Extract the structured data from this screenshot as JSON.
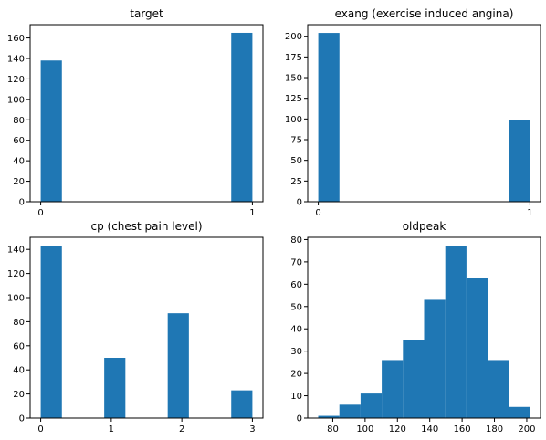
{
  "colors": {
    "bar": "#1f77b4"
  },
  "chart_data": [
    {
      "type": "bar",
      "title": "target",
      "bins": [
        [
          0,
          0.1
        ],
        [
          0.1,
          0.2
        ],
        [
          0.2,
          0.3
        ],
        [
          0.3,
          0.4
        ],
        [
          0.4,
          0.5
        ],
        [
          0.5,
          0.6
        ],
        [
          0.6,
          0.7
        ],
        [
          0.7,
          0.8
        ],
        [
          0.8,
          0.9
        ],
        [
          0.9,
          1.0
        ]
      ],
      "values": [
        138,
        0,
        0,
        0,
        0,
        0,
        0,
        0,
        0,
        165
      ],
      "xlim": [
        -0.05,
        1.05
      ],
      "ylim": [
        0,
        173
      ],
      "xticks": [
        0,
        1
      ],
      "yticks": [
        0,
        20,
        40,
        60,
        80,
        100,
        120,
        140,
        160
      ]
    },
    {
      "type": "bar",
      "title": "exang (exercise induced angina)",
      "bins": [
        [
          0,
          0.1
        ],
        [
          0.1,
          0.2
        ],
        [
          0.2,
          0.3
        ],
        [
          0.3,
          0.4
        ],
        [
          0.4,
          0.5
        ],
        [
          0.5,
          0.6
        ],
        [
          0.6,
          0.7
        ],
        [
          0.7,
          0.8
        ],
        [
          0.8,
          0.9
        ],
        [
          0.9,
          1.0
        ]
      ],
      "values": [
        204,
        0,
        0,
        0,
        0,
        0,
        0,
        0,
        0,
        99
      ],
      "xlim": [
        -0.05,
        1.05
      ],
      "ylim": [
        0,
        214
      ],
      "xticks": [
        0,
        1
      ],
      "yticks": [
        0,
        25,
        50,
        75,
        100,
        125,
        150,
        175,
        200
      ]
    },
    {
      "type": "bar",
      "title": "cp (chest pain level)",
      "bins": [
        [
          0,
          0.3
        ],
        [
          0.3,
          0.6
        ],
        [
          0.6,
          0.9
        ],
        [
          0.9,
          1.2
        ],
        [
          1.2,
          1.5
        ],
        [
          1.5,
          1.8
        ],
        [
          1.8,
          2.1
        ],
        [
          2.1,
          2.4
        ],
        [
          2.4,
          2.7
        ],
        [
          2.7,
          3.0
        ]
      ],
      "values": [
        143,
        0,
        0,
        50,
        0,
        0,
        87,
        0,
        0,
        23
      ],
      "xlim": [
        -0.15,
        3.15
      ],
      "ylim": [
        0,
        150
      ],
      "xticks": [
        0,
        1,
        2,
        3
      ],
      "yticks": [
        0,
        20,
        40,
        60,
        80,
        100,
        120,
        140
      ]
    },
    {
      "type": "bar",
      "title": "oldpeak",
      "bins": [
        [
          71,
          84.1
        ],
        [
          84.1,
          97.2
        ],
        [
          97.2,
          110.3
        ],
        [
          110.3,
          123.4
        ],
        [
          123.4,
          136.5
        ],
        [
          136.5,
          149.6
        ],
        [
          149.6,
          162.7
        ],
        [
          162.7,
          175.8
        ],
        [
          175.8,
          188.9
        ],
        [
          188.9,
          202
        ]
      ],
      "values": [
        1,
        6,
        11,
        26,
        35,
        53,
        77,
        63,
        26,
        5
      ],
      "xlim": [
        64.5,
        208.5
      ],
      "ylim": [
        0,
        81
      ],
      "xticks": [
        80,
        100,
        120,
        140,
        160,
        180,
        200
      ],
      "yticks": [
        0,
        10,
        20,
        30,
        40,
        50,
        60,
        70,
        80
      ]
    }
  ]
}
